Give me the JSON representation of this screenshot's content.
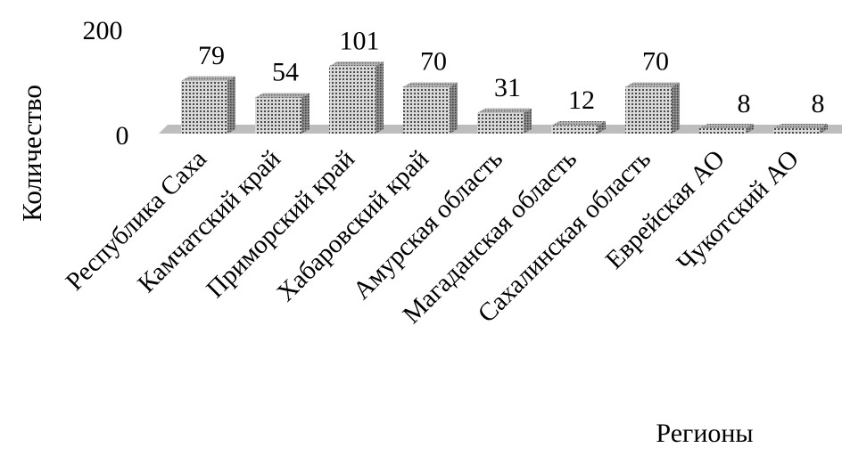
{
  "chart_data": {
    "type": "bar",
    "style": "3d-column, grayscale dotted pattern fill",
    "title": "",
    "xlabel": "Регионы",
    "ylabel": "Количество",
    "ylim": [
      0,
      200
    ],
    "yticks": [
      "0",
      "200"
    ],
    "grid": false,
    "legend": "none",
    "categories": [
      "Республика Саха",
      "Камчатский край",
      "Приморский край",
      "Хабаровский край",
      "Амурская область",
      "Магаданская область",
      "Сахалинская область",
      "Еврейская АО",
      "Чукотский АО"
    ],
    "values": [
      79,
      54,
      101,
      70,
      31,
      12,
      70,
      8,
      8
    ],
    "data_labels": [
      "79",
      "54",
      "101",
      "70",
      "31",
      "12",
      "70",
      "8",
      "8"
    ],
    "colors": {
      "floor": "#bdbdbd",
      "bar_front": "#d4d4d4",
      "bar_side": "#8f8f8f",
      "bar_top": "#a9a9a9",
      "dots": "#4a4a4a"
    }
  }
}
